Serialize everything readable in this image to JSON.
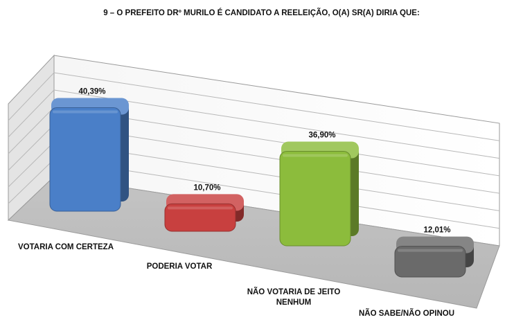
{
  "chart_data": {
    "type": "bar",
    "title": "9 – O PREFEITO DRº MURILO É CANDIDATO A REELEIÇÃO, O(A) SR(A) DIRIA QUE:",
    "categories": [
      "VOTARIA COM CERTEZA",
      "PODERIA VOTAR",
      "NÃO VOTARIA DE JEITO NENHUM",
      "NÃO SABE/NÃO OPINOU"
    ],
    "category_lines": [
      [
        "VOTARIA COM CERTEZA"
      ],
      [
        "PODERIA VOTAR"
      ],
      [
        "NÃO VOTARIA DE JEITO",
        "NENHUM"
      ],
      [
        "NÃO SABE/NÃO OPINOU"
      ]
    ],
    "values": [
      40.39,
      10.7,
      36.9,
      12.01
    ],
    "value_labels": [
      "40,39%",
      "10,70%",
      "36,90%",
      "12,01%"
    ],
    "colors": [
      "#4a7fc8",
      "#c8403f",
      "#8cbc3c",
      "#6a6a6a"
    ],
    "grid": true,
    "legend": "none"
  }
}
